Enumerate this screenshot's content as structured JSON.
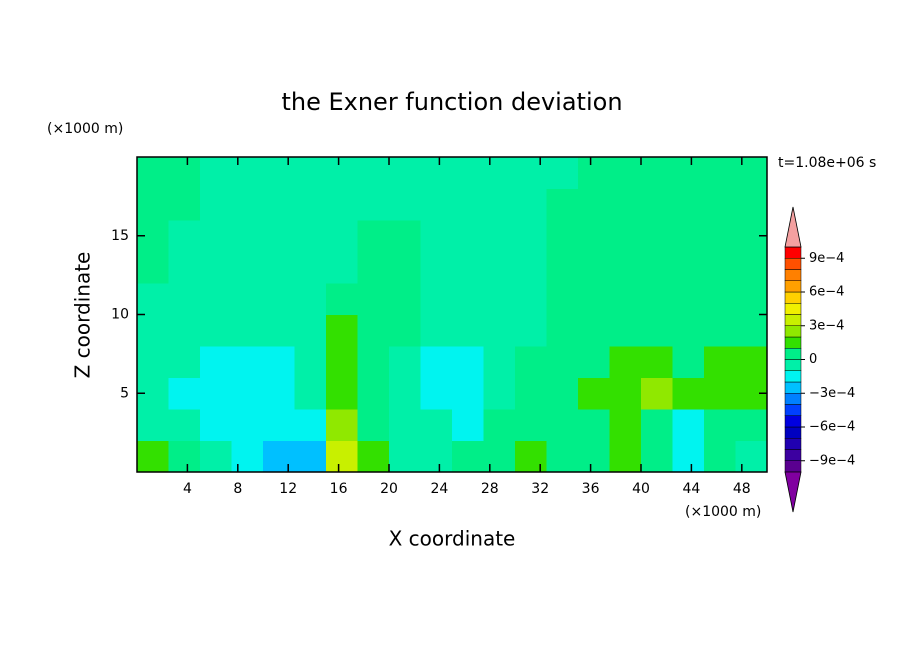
{
  "chart_data": {
    "type": "contour",
    "title": "the Exner function deviation",
    "x_label": "X coordinate",
    "y_label": "Z coordinate",
    "x_unit": "(×1000 m)",
    "y_unit": "(×1000 m)",
    "annotation": "t=1.08e+06 s",
    "xlim": [
      0,
      50
    ],
    "ylim": [
      0,
      20
    ],
    "xticks": [
      4,
      8,
      12,
      16,
      20,
      24,
      28,
      32,
      36,
      40,
      44,
      48
    ],
    "yticks": [
      5,
      10,
      15
    ],
    "x": [
      1.25,
      3.75,
      6.25,
      8.75,
      11.25,
      13.75,
      16.25,
      18.75,
      21.25,
      23.75,
      26.25,
      28.75,
      31.25,
      33.75,
      36.25,
      38.75,
      41.25,
      43.75,
      46.25,
      48.75
    ],
    "y": [
      1,
      3,
      5,
      7,
      9,
      11,
      13,
      15,
      17,
      19
    ],
    "z": [
      [
        0.00015,
        5e-05,
        -5e-05,
        -0.00015,
        -0.00025,
        -0.00025,
        0.00035,
        0.00015,
        -5e-05,
        -5e-05,
        5e-05,
        5e-05,
        0.00015,
        5e-05,
        5e-05,
        0.00015,
        5e-05,
        -0.00015,
        5e-05,
        -5e-05
      ],
      [
        -5e-05,
        -5e-05,
        -0.00015,
        -0.00015,
        -0.00015,
        -0.00015,
        0.00025,
        5e-05,
        -5e-05,
        -5e-05,
        -0.00015,
        5e-05,
        5e-05,
        5e-05,
        5e-05,
        0.00015,
        5e-05,
        -0.00015,
        5e-05,
        5e-05
      ],
      [
        -5e-05,
        -0.00015,
        -0.00015,
        -0.00015,
        -0.00015,
        -5e-05,
        0.00015,
        5e-05,
        -5e-05,
        -0.00015,
        -0.00015,
        -5e-05,
        5e-05,
        5e-05,
        0.00015,
        0.00015,
        0.00025,
        0.00015,
        0.00015,
        0.00015
      ],
      [
        -5e-05,
        -5e-05,
        -0.00015,
        -0.00015,
        -0.00015,
        -5e-05,
        0.00015,
        5e-05,
        -5e-05,
        -0.00015,
        -0.00015,
        -5e-05,
        5e-05,
        5e-05,
        5e-05,
        0.00015,
        0.00015,
        5e-05,
        0.00015,
        0.00015
      ],
      [
        -5e-05,
        -5e-05,
        -5e-05,
        -5e-05,
        -5e-05,
        -5e-05,
        0.00015,
        5e-05,
        5e-05,
        -5e-05,
        -5e-05,
        -5e-05,
        -5e-05,
        5e-05,
        5e-05,
        5e-05,
        5e-05,
        5e-05,
        5e-05,
        5e-05
      ],
      [
        -5e-05,
        -5e-05,
        -5e-05,
        -5e-05,
        -5e-05,
        -5e-05,
        5e-05,
        5e-05,
        5e-05,
        -5e-05,
        -5e-05,
        -5e-05,
        -5e-05,
        5e-05,
        5e-05,
        5e-05,
        5e-05,
        5e-05,
        5e-05,
        5e-05
      ],
      [
        5e-05,
        -5e-05,
        -5e-05,
        -5e-05,
        -5e-05,
        -5e-05,
        -5e-05,
        5e-05,
        5e-05,
        -5e-05,
        -5e-05,
        -5e-05,
        -5e-05,
        5e-05,
        5e-05,
        5e-05,
        5e-05,
        5e-05,
        5e-05,
        5e-05
      ],
      [
        5e-05,
        -5e-05,
        -5e-05,
        -5e-05,
        -5e-05,
        -5e-05,
        -5e-05,
        5e-05,
        5e-05,
        -5e-05,
        -5e-05,
        -5e-05,
        -5e-05,
        5e-05,
        5e-05,
        5e-05,
        5e-05,
        5e-05,
        5e-05,
        5e-05
      ],
      [
        5e-05,
        5e-05,
        -5e-05,
        -5e-05,
        -5e-05,
        -5e-05,
        -5e-05,
        -5e-05,
        -5e-05,
        -5e-05,
        -5e-05,
        -5e-05,
        -5e-05,
        5e-05,
        5e-05,
        5e-05,
        5e-05,
        5e-05,
        5e-05,
        5e-05
      ],
      [
        5e-05,
        5e-05,
        -5e-05,
        -5e-05,
        -5e-05,
        -5e-05,
        -5e-05,
        -5e-05,
        -5e-05,
        -5e-05,
        -5e-05,
        -5e-05,
        -5e-05,
        -5e-05,
        5e-05,
        5e-05,
        5e-05,
        5e-05,
        5e-05,
        5e-05
      ]
    ],
    "colorbar": {
      "levels": [
        -0.001,
        -0.0009,
        -0.0008,
        -0.0007,
        -0.0006,
        -0.0005,
        -0.0004,
        -0.0003,
        -0.0002,
        -0.0001,
        0,
        0.0001,
        0.0002,
        0.0003,
        0.0004,
        0.0005,
        0.0006,
        0.0007,
        0.0008,
        0.0009,
        0.001
      ],
      "colors": [
        "#5a0090",
        "#3c00a0",
        "#2000b0",
        "#0000c0",
        "#0000e0",
        "#0040ff",
        "#0080ff",
        "#00c0ff",
        "#00f4f0",
        "#00f0a8",
        "#00ee88",
        "#33e000",
        "#90e800",
        "#c8f000",
        "#f0f000",
        "#ffd000",
        "#ffa000",
        "#ff8000",
        "#ff5000",
        "#ff0000"
      ],
      "under_color": "#8000a0",
      "over_color": "#f4a0a0",
      "ticks": [
        {
          "value": -0.0009,
          "label": "−9e−4"
        },
        {
          "value": -0.0006,
          "label": "−6e−4"
        },
        {
          "value": -0.0003,
          "label": "−3e−4"
        },
        0,
        {
          "value": 0.0003,
          "label": "3e−4"
        },
        {
          "value": 0.0006,
          "label": "6e−4"
        },
        {
          "value": 0.0009,
          "label": "9e−4"
        }
      ]
    }
  }
}
